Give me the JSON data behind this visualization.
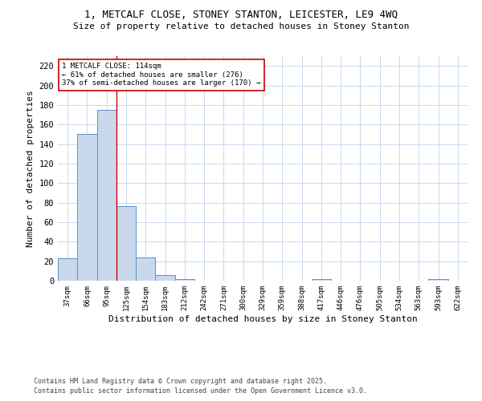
{
  "title_line1": "1, METCALF CLOSE, STONEY STANTON, LEICESTER, LE9 4WQ",
  "title_line2": "Size of property relative to detached houses in Stoney Stanton",
  "xlabel": "Distribution of detached houses by size in Stoney Stanton",
  "ylabel": "Number of detached properties",
  "categories": [
    "37sqm",
    "66sqm",
    "95sqm",
    "125sqm",
    "154sqm",
    "183sqm",
    "212sqm",
    "242sqm",
    "271sqm",
    "300sqm",
    "329sqm",
    "359sqm",
    "388sqm",
    "417sqm",
    "446sqm",
    "476sqm",
    "505sqm",
    "534sqm",
    "563sqm",
    "593sqm",
    "622sqm"
  ],
  "values": [
    23,
    150,
    175,
    76,
    24,
    6,
    2,
    0,
    0,
    0,
    0,
    0,
    0,
    2,
    0,
    0,
    0,
    0,
    0,
    2,
    0
  ],
  "bar_color": "#c8d9ed",
  "bar_edge_color": "#5b8fc9",
  "vline_x": 2.5,
  "annotation_line1": "1 METCALF CLOSE: 114sqm",
  "annotation_line2": "← 61% of detached houses are smaller (276)",
  "annotation_line3": "37% of semi-detached houses are larger (170) →",
  "annotation_box_color": "#ffffff",
  "annotation_box_edge": "#cc0000",
  "vline_color": "#cc0000",
  "ylim": [
    0,
    230
  ],
  "yticks": [
    0,
    20,
    40,
    60,
    80,
    100,
    120,
    140,
    160,
    180,
    200,
    220
  ],
  "footnote_line1": "Contains HM Land Registry data © Crown copyright and database right 2025.",
  "footnote_line2": "Contains public sector information licensed under the Open Government Licence v3.0.",
  "bg_color": "#ffffff",
  "grid_color": "#c8d9ed"
}
